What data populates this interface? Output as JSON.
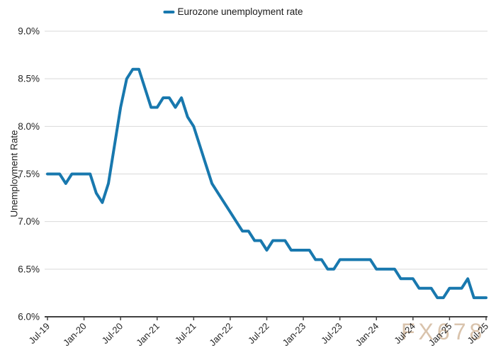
{
  "watermark": {
    "text": "FX678"
  },
  "colors": {
    "line": "#1878AE",
    "grid": "#D9D9D9",
    "axis": "#404040",
    "text": "#262626",
    "watermark": "#D9C3AC"
  },
  "chart_data": {
    "type": "line",
    "title": "",
    "xlabel": "",
    "ylabel": "Unemployment Rate",
    "ylim": [
      6.0,
      9.0
    ],
    "y_tick_step": 0.5,
    "y_ticks": [
      "9.0%",
      "8.5%",
      "8.0%",
      "7.5%",
      "7.0%",
      "6.5%",
      "6.0%"
    ],
    "x_tick_every": 6,
    "grid": "horizontal",
    "legend_position": "top-center",
    "x": [
      "Jul-19",
      "Aug-19",
      "Sep-19",
      "Oct-19",
      "Nov-19",
      "Dec-19",
      "Jan-20",
      "Feb-20",
      "Mar-20",
      "Apr-20",
      "May-20",
      "Jun-20",
      "Jul-20",
      "Aug-20",
      "Sep-20",
      "Oct-20",
      "Nov-20",
      "Dec-20",
      "Jan-21",
      "Feb-21",
      "Mar-21",
      "Apr-21",
      "May-21",
      "Jun-21",
      "Jul-21",
      "Aug-21",
      "Sep-21",
      "Oct-21",
      "Nov-21",
      "Dec-21",
      "Jan-22",
      "Feb-22",
      "Mar-22",
      "Apr-22",
      "May-22",
      "Jun-22",
      "Jul-22",
      "Aug-22",
      "Sep-22",
      "Oct-22",
      "Nov-22",
      "Dec-22",
      "Jan-23",
      "Feb-23",
      "Mar-23",
      "Apr-23",
      "May-23",
      "Jun-23",
      "Jul-23",
      "Aug-23",
      "Sep-23",
      "Oct-23",
      "Nov-23",
      "Dec-23",
      "Jan-24",
      "Feb-24",
      "Mar-24",
      "Apr-24",
      "May-24",
      "Jun-24",
      "Jul-24",
      "Aug-24",
      "Sep-24",
      "Oct-24",
      "Nov-24",
      "Dec-24",
      "Jan-25",
      "Feb-25",
      "Mar-25",
      "Apr-25",
      "May-25",
      "Jun-25",
      "Jul-25"
    ],
    "series": [
      {
        "name": "Eurozone unemployment rate",
        "values": [
          7.5,
          7.5,
          7.5,
          7.4,
          7.5,
          7.5,
          7.5,
          7.5,
          7.3,
          7.2,
          7.4,
          7.8,
          8.2,
          8.5,
          8.6,
          8.6,
          8.4,
          8.2,
          8.2,
          8.3,
          8.3,
          8.2,
          8.3,
          8.1,
          8.0,
          7.8,
          7.6,
          7.4,
          7.3,
          7.2,
          7.1,
          7.0,
          6.9,
          6.9,
          6.8,
          6.8,
          6.7,
          6.8,
          6.8,
          6.8,
          6.7,
          6.7,
          6.7,
          6.7,
          6.6,
          6.6,
          6.5,
          6.5,
          6.6,
          6.6,
          6.6,
          6.6,
          6.6,
          6.6,
          6.5,
          6.5,
          6.5,
          6.5,
          6.4,
          6.4,
          6.4,
          6.3,
          6.3,
          6.3,
          6.2,
          6.2,
          6.3,
          6.3,
          6.3,
          6.4,
          6.2,
          6.2,
          6.2
        ]
      }
    ]
  }
}
